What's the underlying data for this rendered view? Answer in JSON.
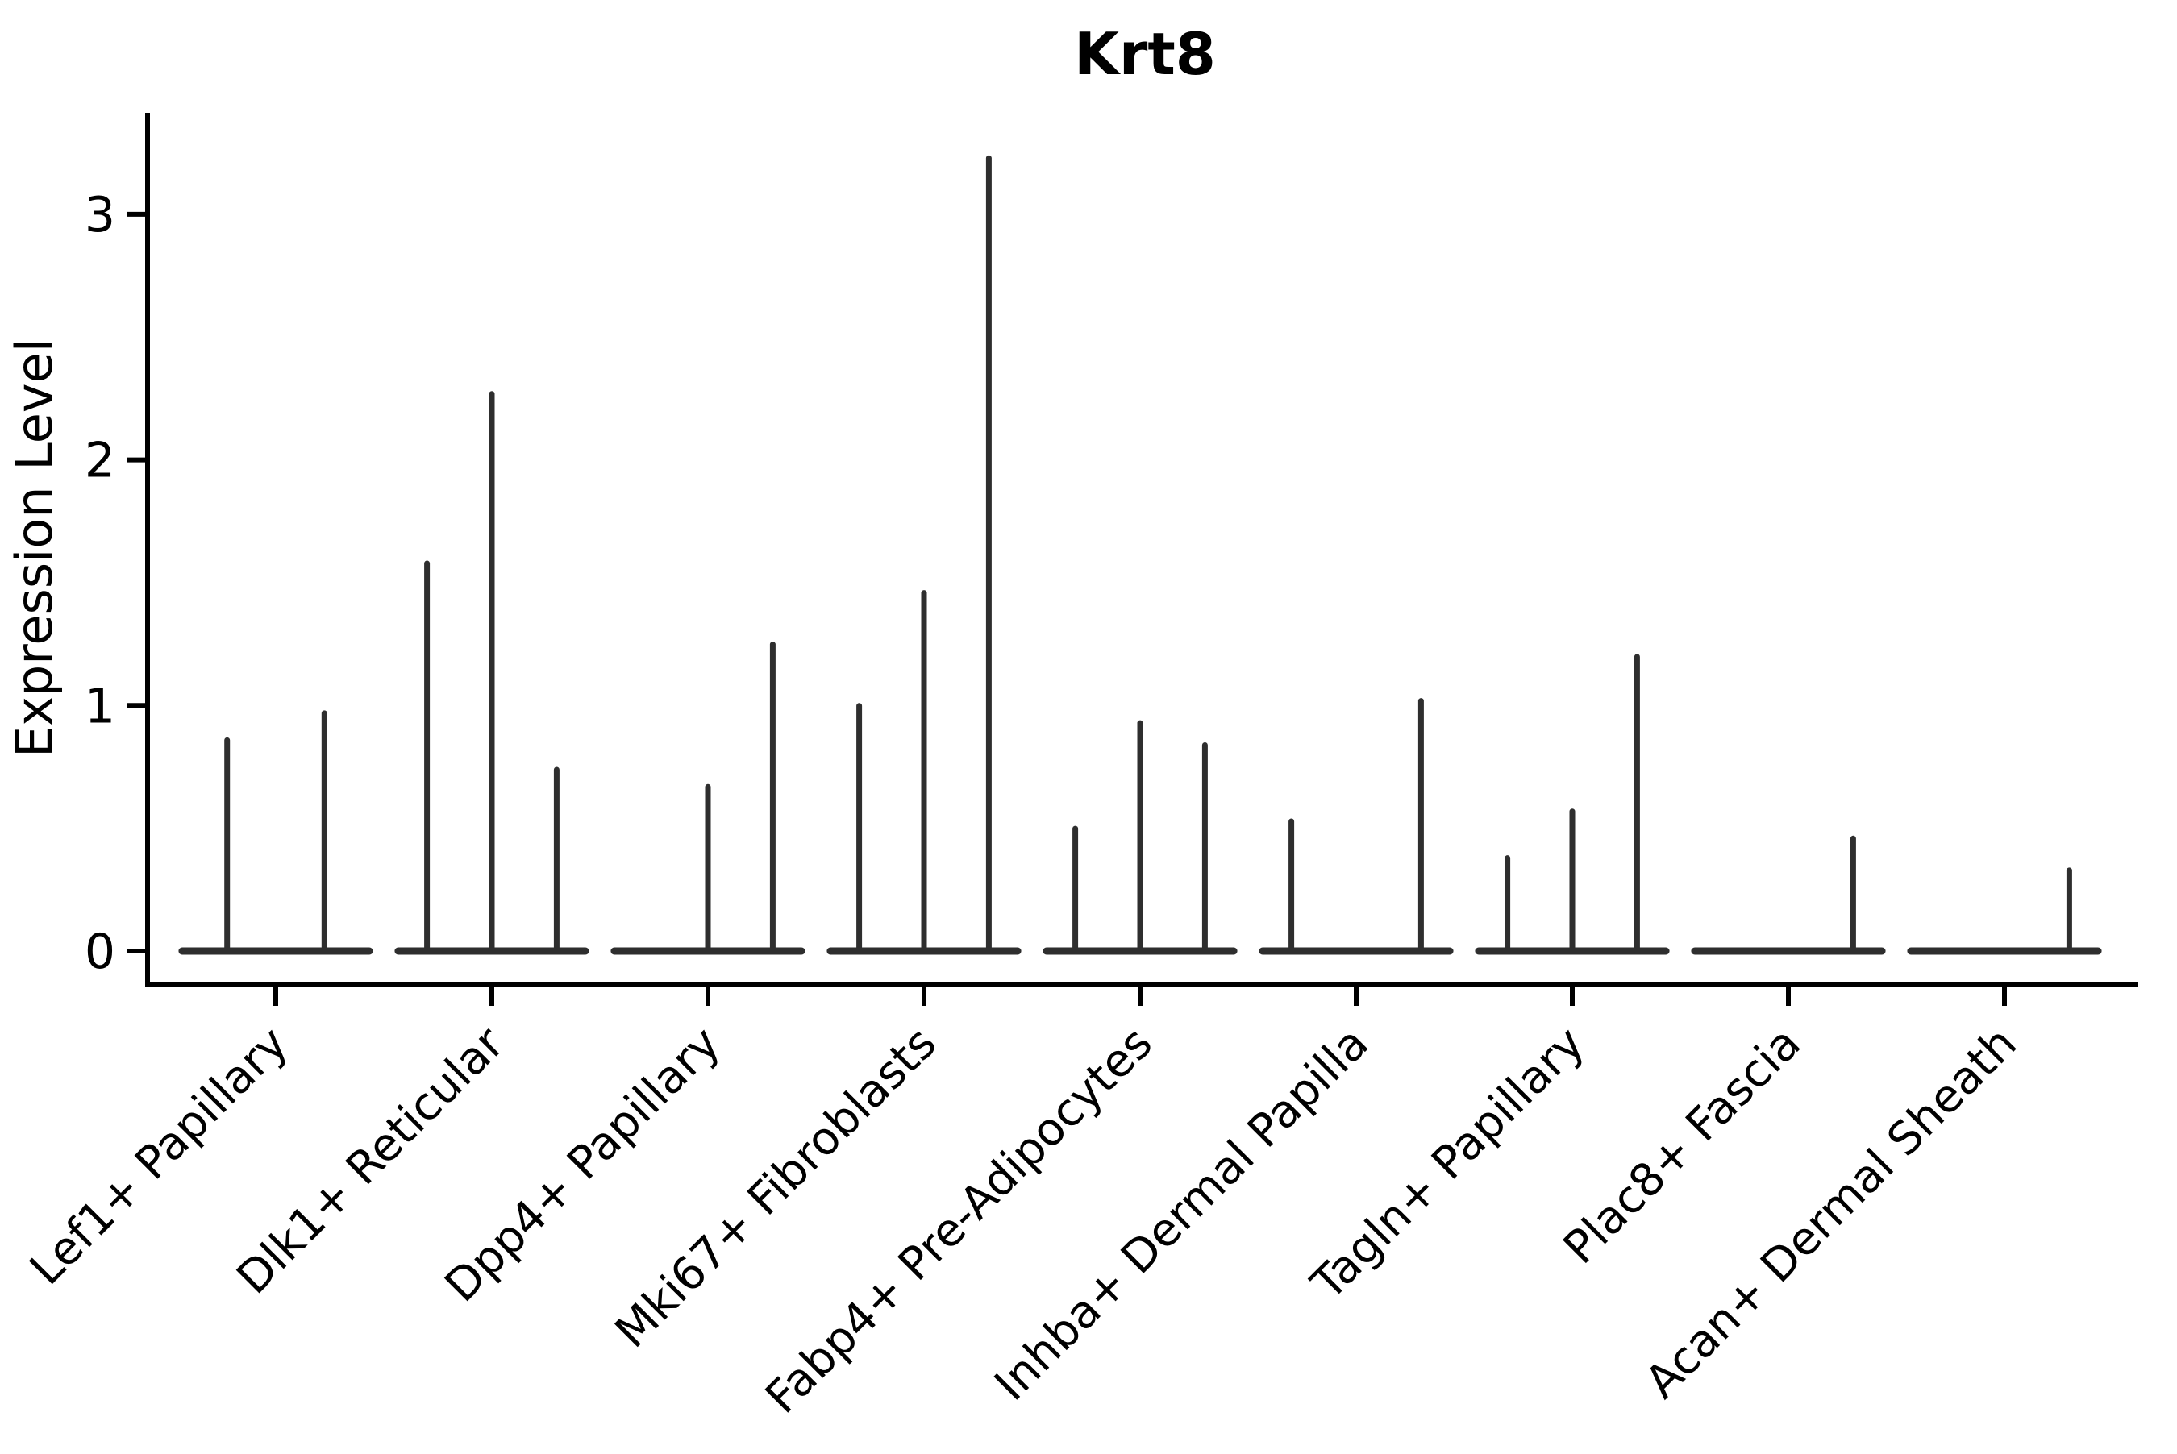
{
  "chart_data": {
    "type": "violin",
    "title": "Krt8",
    "xlabel": "",
    "ylabel": "Expression Level",
    "yticks": [
      0,
      1,
      2,
      3
    ],
    "ylim": [
      0,
      3.41
    ],
    "grid": false,
    "legend": "none",
    "description": "Violin plot of Krt8 expression per fibroblast subpopulation; each category holds dodged sub-violins that are flat at 0 with thin density spikes reaching the listed maximum expression value (0 = fully flat violin, no spike).",
    "categories": [
      "Lef1+ Papillary",
      "Dlk1+ Reticular",
      "Dpp4+ Papillary",
      "Mki67+ Fibroblasts",
      "Fabp4+ Pre-Adipocytes",
      "Inhba+ Dermal Papilla",
      "Tagln+ Papillary",
      "Plac8+ Fascia",
      "Acan+ Dermal Sheath"
    ],
    "series": [
      {
        "name": "Lef1+ Papillary",
        "violin_spike_maxima": [
          0.87,
          0.98
        ]
      },
      {
        "name": "Dlk1+ Reticular",
        "violin_spike_maxima": [
          1.59,
          2.28,
          0.75
        ]
      },
      {
        "name": "Dpp4+ Papillary",
        "violin_spike_maxima": [
          0,
          0.68,
          1.26
        ]
      },
      {
        "name": "Mki67+ Fibroblasts",
        "violin_spike_maxima": [
          1.01,
          1.47,
          3.24
        ]
      },
      {
        "name": "Fabp4+ Pre-Adipocytes",
        "violin_spike_maxima": [
          0.51,
          0.94,
          0.85
        ]
      },
      {
        "name": "Inhba+ Dermal Papilla",
        "violin_spike_maxima": [
          0.54,
          0,
          1.03
        ]
      },
      {
        "name": "Tagln+ Papillary",
        "violin_spike_maxima": [
          0.39,
          0.58,
          1.21
        ]
      },
      {
        "name": "Plac8+ Fascia",
        "violin_spike_maxima": [
          0,
          0,
          0.47
        ]
      },
      {
        "name": "Acan+ Dermal Sheath",
        "violin_spike_maxima": [
          0,
          0,
          0.34
        ]
      }
    ]
  },
  "style": {
    "background_color": "#ffffff",
    "violin_color": "#2e2e2e",
    "axis_color": "#000000",
    "text_color": "#000000"
  }
}
